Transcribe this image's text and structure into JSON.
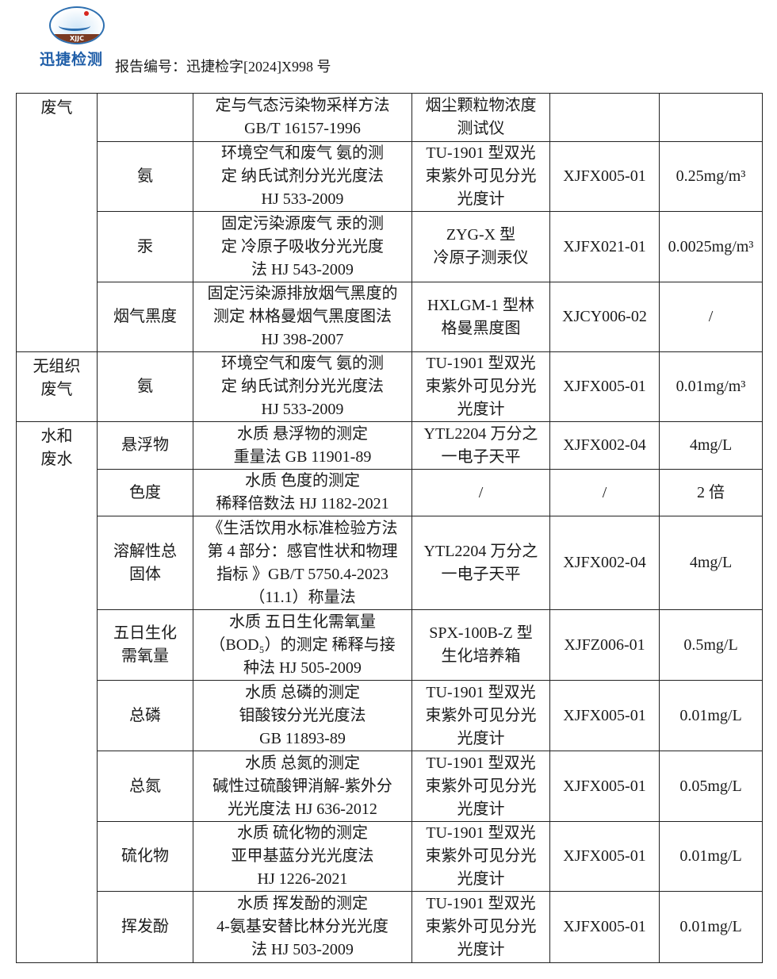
{
  "header": {
    "logo_badge": "XJJC",
    "logo_name": "迅捷检测",
    "report_number": "报告编号：迅捷检字[2024]X998 号"
  },
  "rows": [
    {
      "category": "废气",
      "item": "",
      "method": "定与气态污染物采样方法\nGB/T 16157-1996",
      "instrument": "烟尘颗粒物浓度\n测试仪",
      "instrument_id": "",
      "limit": ""
    },
    {
      "item": "氨",
      "method": "环境空气和废气 氨的测\n定 纳氏试剂分光光度法\nHJ 533-2009",
      "instrument": "TU-1901 型双光\n束紫外可见分光\n光度计",
      "instrument_id": "XJFX005-01",
      "limit": "0.25mg/m³"
    },
    {
      "item": "汞",
      "method": "固定污染源废气 汞的测\n定 冷原子吸收分光光度\n法 HJ 543-2009",
      "instrument": "ZYG-X 型\n冷原子测汞仪",
      "instrument_id": "XJFX021-01",
      "limit": "0.0025mg/m³"
    },
    {
      "item": "烟气黑度",
      "method": "固定污染源排放烟气黑度的\n测定 林格曼烟气黑度图法\nHJ 398-2007",
      "instrument": "HXLGM-1 型林\n格曼黑度图",
      "instrument_id": "XJCY006-02",
      "limit": "/"
    },
    {
      "category": "无组织\n废气",
      "item": "氨",
      "method": "环境空气和废气 氨的测\n定 纳氏试剂分光光度法\nHJ 533-2009",
      "instrument": "TU-1901 型双光\n束紫外可见分光\n光度计",
      "instrument_id": "XJFX005-01",
      "limit": "0.01mg/m³"
    },
    {
      "category": "水和\n废水",
      "item": "悬浮物",
      "method": "水质 悬浮物的测定\n重量法 GB 11901-89",
      "instrument": "YTL2204 万分之\n一电子天平",
      "instrument_id": "XJFX002-04",
      "limit": "4mg/L"
    },
    {
      "item": "色度",
      "method": "水质 色度的测定\n稀释倍数法 HJ 1182-2021",
      "instrument": "/",
      "instrument_id": "/",
      "limit": "2 倍"
    },
    {
      "item": "溶解性总\n固体",
      "method": "《生活饮用水标准检验方法\n第 4 部分：感官性状和物理\n指标 》GB/T 5750.4-2023\n（11.1）称量法",
      "instrument": "YTL2204 万分之\n一电子天平",
      "instrument_id": "XJFX002-04",
      "limit": "4mg/L"
    },
    {
      "item": "五日生化\n需氧量",
      "method": "水质 五日生化需氧量\n（BOD₅）的测定 稀释与接\n种法 HJ 505-2009",
      "instrument": "SPX-100B-Z 型\n生化培养箱",
      "instrument_id": "XJFZ006-01",
      "limit": "0.5mg/L"
    },
    {
      "item": "总磷",
      "method": "水质 总磷的测定\n钼酸铵分光光度法\nGB 11893-89",
      "instrument": "TU-1901 型双光\n束紫外可见分光\n光度计",
      "instrument_id": "XJFX005-01",
      "limit": "0.01mg/L"
    },
    {
      "item": "总氮",
      "method": "水质 总氮的测定\n碱性过硫酸钾消解-紫外分\n光光度法 HJ 636-2012",
      "instrument": "TU-1901 型双光\n束紫外可见分光\n光度计",
      "instrument_id": "XJFX005-01",
      "limit": "0.05mg/L"
    },
    {
      "item": "硫化物",
      "method": "水质 硫化物的测定\n亚甲基蓝分光光度法\nHJ 1226-2021",
      "instrument": "TU-1901 型双光\n束紫外可见分光\n光度计",
      "instrument_id": "XJFX005-01",
      "limit": "0.01mg/L"
    },
    {
      "item": "挥发酚",
      "method": "水质 挥发酚的测定\n4-氨基安替比林分光光度\n法 HJ 503-2009",
      "instrument": "TU-1901 型双光\n束紫外可见分光\n光度计",
      "instrument_id": "XJFX005-01",
      "limit": "0.01mg/L"
    }
  ]
}
